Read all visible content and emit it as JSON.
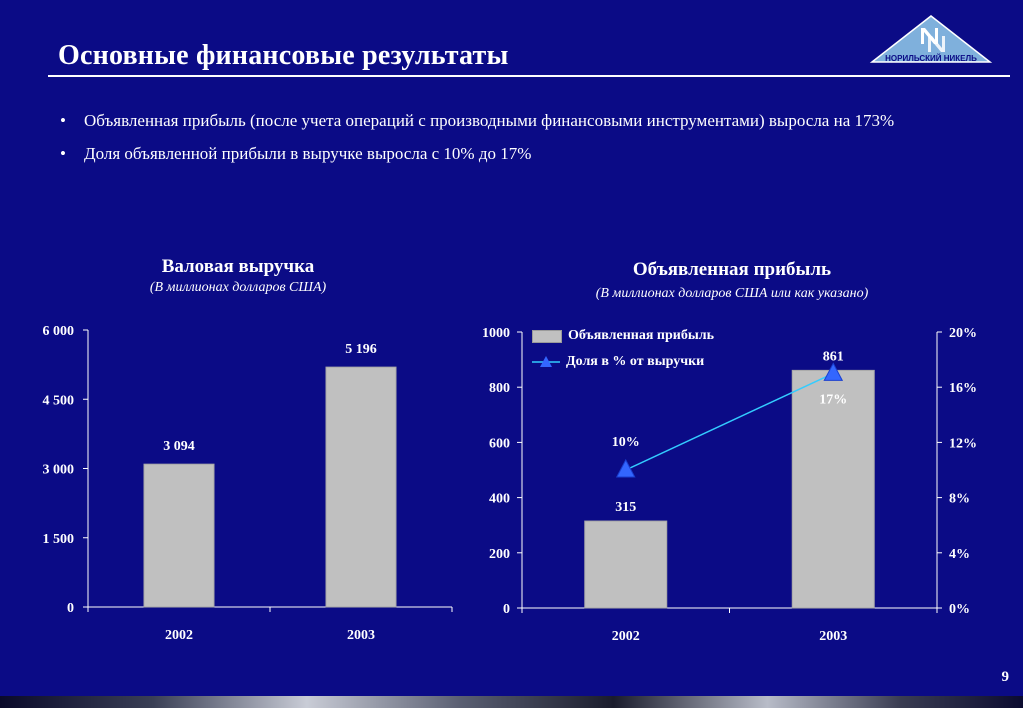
{
  "slide": {
    "title": "Основные финансовые результаты",
    "logo_text": "НОРИЛЬСКИЙ НИКЕЛЬ",
    "bullets": [
      "Объявленная прибыль (после учета операций с производными финансовыми инструментами) выросла на 173%",
      "Доля объявленной прибыли в выручке выросла с 10% до 17%"
    ],
    "bullet_char": "•",
    "page_number": "9"
  },
  "colors": {
    "background": "#0b0b86",
    "bar": "#c0c0c0",
    "line": "#33ccff",
    "marker": "#3366ff"
  },
  "chart_data": [
    {
      "type": "bar",
      "title": "Валовая выручка",
      "subtitle": "(В миллионах долларов США)",
      "categories": [
        "2002",
        "2003"
      ],
      "values": [
        3094,
        5196
      ],
      "value_labels": [
        "3 094",
        "5 196"
      ],
      "ylim": [
        0,
        6000
      ],
      "y_ticks": [
        0,
        1500,
        3000,
        4500,
        6000
      ],
      "y_tick_labels": [
        "0",
        "1 500",
        "3 000",
        "4 500",
        "6 000"
      ],
      "grid": false
    },
    {
      "type": "bar",
      "title": "Объявленная прибыль",
      "subtitle": "(В миллионах долларов США или как указано)",
      "categories": [
        "2002",
        "2003"
      ],
      "series": [
        {
          "name": "Объявленная прибыль",
          "type": "bar",
          "axis": "left",
          "values": [
            315,
            861
          ],
          "value_labels": [
            "315",
            "861"
          ]
        },
        {
          "name": "Доля в % от выручки",
          "type": "line",
          "axis": "right",
          "values": [
            10,
            17
          ],
          "value_labels": [
            "10%",
            "17%"
          ]
        }
      ],
      "ylim": [
        0,
        1000
      ],
      "y_ticks": [
        0,
        200,
        400,
        600,
        800,
        1000
      ],
      "y_tick_labels": [
        "0",
        "200",
        "400",
        "600",
        "800",
        "1000"
      ],
      "y2lim": [
        0,
        20
      ],
      "y2_ticks": [
        0,
        4,
        8,
        12,
        16,
        20
      ],
      "y2_tick_labels": [
        "0%",
        "4%",
        "8%",
        "12%",
        "16%",
        "20%"
      ],
      "legend_position": "top-left",
      "grid": false
    }
  ]
}
